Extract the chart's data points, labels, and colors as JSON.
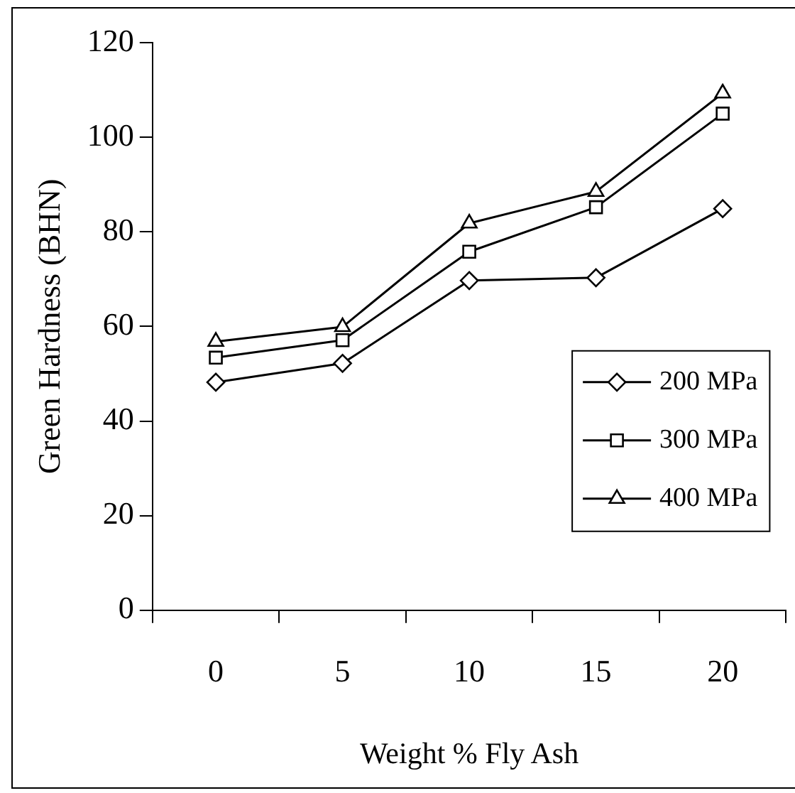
{
  "chart_data": {
    "type": "line",
    "xlabel": "Weight % Fly Ash",
    "ylabel": "Green Hardness (BHN)",
    "categories": [
      "0",
      "5",
      "10",
      "15",
      "20"
    ],
    "series": [
      {
        "name": "200 MPa",
        "color": "#000000",
        "marker": "diamond",
        "values": [
          48.2,
          52.2,
          69.7,
          70.3,
          84.9
        ]
      },
      {
        "name": "300 MPa",
        "color": "#000000",
        "marker": "square",
        "values": [
          53.4,
          57.1,
          75.8,
          85.2,
          105
        ]
      },
      {
        "name": "400 MPa",
        "color": "#000000",
        "marker": "triangle",
        "values": [
          56.8,
          59.9,
          81.8,
          88.5,
          109.3
        ]
      }
    ],
    "ylim": [
      0,
      120
    ],
    "yticks": [
      0,
      20,
      40,
      60,
      80,
      100,
      120
    ],
    "grid": false,
    "legend": "bottom right",
    "line_style": "solid"
  }
}
